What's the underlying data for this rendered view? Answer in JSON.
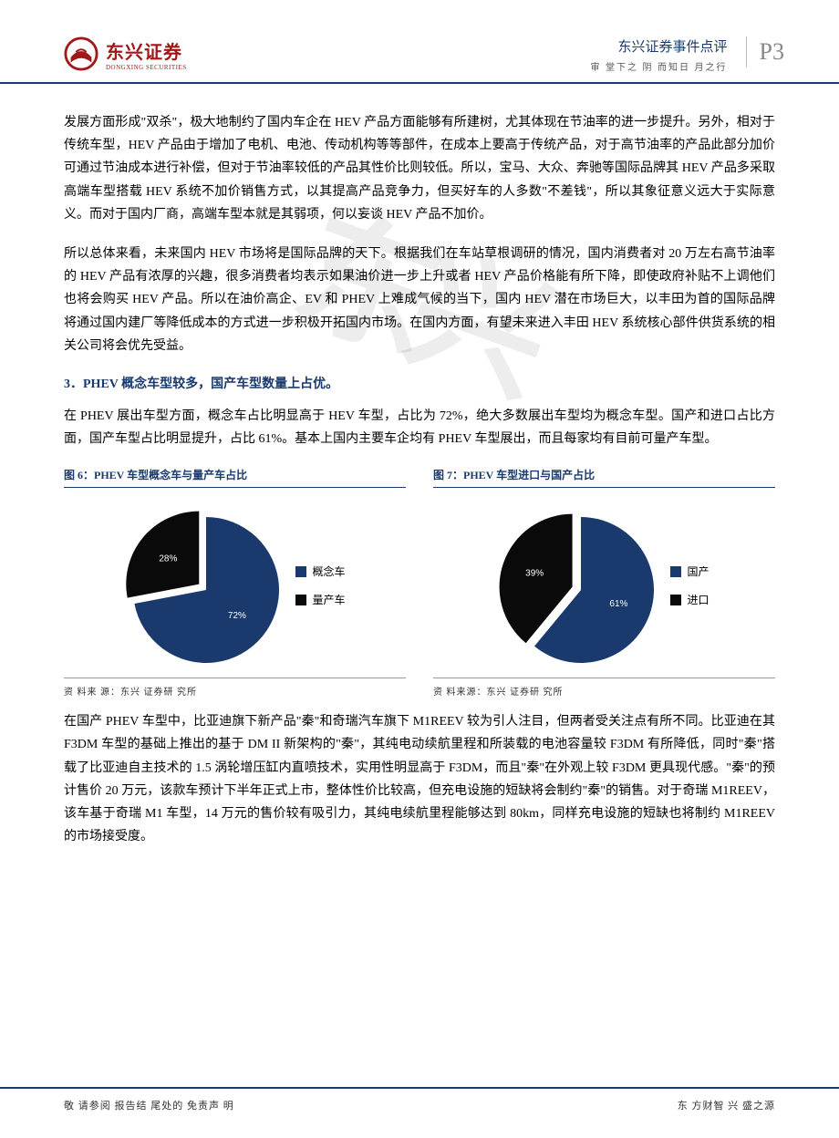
{
  "header": {
    "logo_main": "东兴证券",
    "logo_sub": "DONGXING SECURITIES",
    "title": "东兴证券事件点评",
    "subtitle": "审 堂下之 阴 而知日 月之行",
    "page": "P3",
    "logo_color": "#a01818",
    "border_color": "#1a3a6e"
  },
  "watermark": "东兴",
  "body": {
    "p1": "发展方面形成\"双杀\"，极大地制约了国内车企在 HEV 产品方面能够有所建树，尤其体现在节油率的进一步提升。另外，相对于传统车型，HEV 产品由于增加了电机、电池、传动机构等等部件，在成本上要高于传统产品，对于高节油率的产品此部分加价可通过节油成本进行补偿，但对于节油率较低的产品其性价比则较低。所以，宝马、大众、奔驰等国际品牌其 HEV 产品多采取高端车型搭载 HEV 系统不加价销售方式，以其提高产品竞争力，但买好车的人多数\"不差钱\"，所以其象征意义远大于实际意义。而对于国内厂商，高端车型本就是其弱项，何以妄谈 HEV 产品不加价。",
    "p2": "所以总体来看，未来国内 HEV 市场将是国际品牌的天下。根据我们在车站草根调研的情况，国内消费者对 20 万左右高节油率的 HEV 产品有浓厚的兴趣，很多消费者均表示如果油价进一步上升或者 HEV 产品价格能有所下降，即使政府补贴不上调他们也将会购买 HEV 产品。所以在油价高企、EV 和 PHEV 上难成气候的当下，国内 HEV 潜在市场巨大，以丰田为首的国际品牌将通过国内建厂等降低成本的方式进一步积极开拓国内市场。在国内方面，有望未来进入丰田 HEV 系统核心部件供货系统的相关公司将会优先受益。",
    "heading": "3．PHEV 概念车型较多，国产车型数量上占优。",
    "p3": "在 PHEV 展出车型方面，概念车占比明显高于 HEV 车型，占比为 72%，绝大多数展出车型均为概念车型。国产和进口占比方面，国产车型占比明显提升，占比 61%。基本上国内主要车企均有 PHEV 车型展出，而且每家均有目前可量产车型。",
    "p4": "在国产 PHEV 车型中，比亚迪旗下新产品\"秦\"和奇瑞汽车旗下 M1REEV 较为引人注目，但两者受关注点有所不同。比亚迪在其 F3DM 车型的基础上推出的基于 DM II 新架构的\"秦\"，其纯电动续航里程和所装载的电池容量较 F3DM 有所降低，同时\"秦\"搭载了比亚迪自主技术的 1.5 涡轮增压缸内直喷技术，实用性明显高于 F3DM，而且\"秦\"在外观上较 F3DM 更具现代感。\"秦\"的预计售价 20 万元，该款车预计下半年正式上市，整体性价比较高，但充电设施的短缺将会制约\"秦\"的销售。对于奇瑞 M1REEV，该车基于奇瑞 M1 车型，14 万元的售价较有吸引力，其纯电续航里程能够达到 80km，同样充电设施的短缺也将制约 M1REEV 的市场接受度。"
  },
  "chart6": {
    "type": "pie",
    "title": "图 6：PHEV 车型概念车与量产车占比",
    "slices": [
      {
        "label": "概念车",
        "value": 72,
        "pct_label": "72%",
        "color": "#1a3a6e"
      },
      {
        "label": "量产车",
        "value": 28,
        "pct_label": "28%",
        "color": "#0a0a0a"
      }
    ],
    "start_angle_deg": -90,
    "radius": 80,
    "minor_offset": 10,
    "label_color": "#ffffff",
    "label_fontsize": 10,
    "legend_fontsize": 12,
    "source": "资 料来 源：东兴 证券研 究所",
    "title_color": "#1a3a6e"
  },
  "chart7": {
    "type": "pie",
    "title": "图 7：PHEV 车型进口与国产占比",
    "slices": [
      {
        "label": "国产",
        "value": 61,
        "pct_label": "61%",
        "color": "#1a3a6e"
      },
      {
        "label": "进口",
        "value": 39,
        "pct_label": "39%",
        "color": "#0a0a0a"
      }
    ],
    "start_angle_deg": -90,
    "radius": 80,
    "minor_offset": 10,
    "label_color": "#ffffff",
    "label_fontsize": 10,
    "legend_fontsize": 12,
    "source": "资 料来源：东兴 证券研 究所",
    "title_color": "#1a3a6e"
  },
  "footer": {
    "left": "敬 请参阅 报告结 尾处的 免责声 明",
    "right": "东 方财智 兴 盛之源"
  }
}
